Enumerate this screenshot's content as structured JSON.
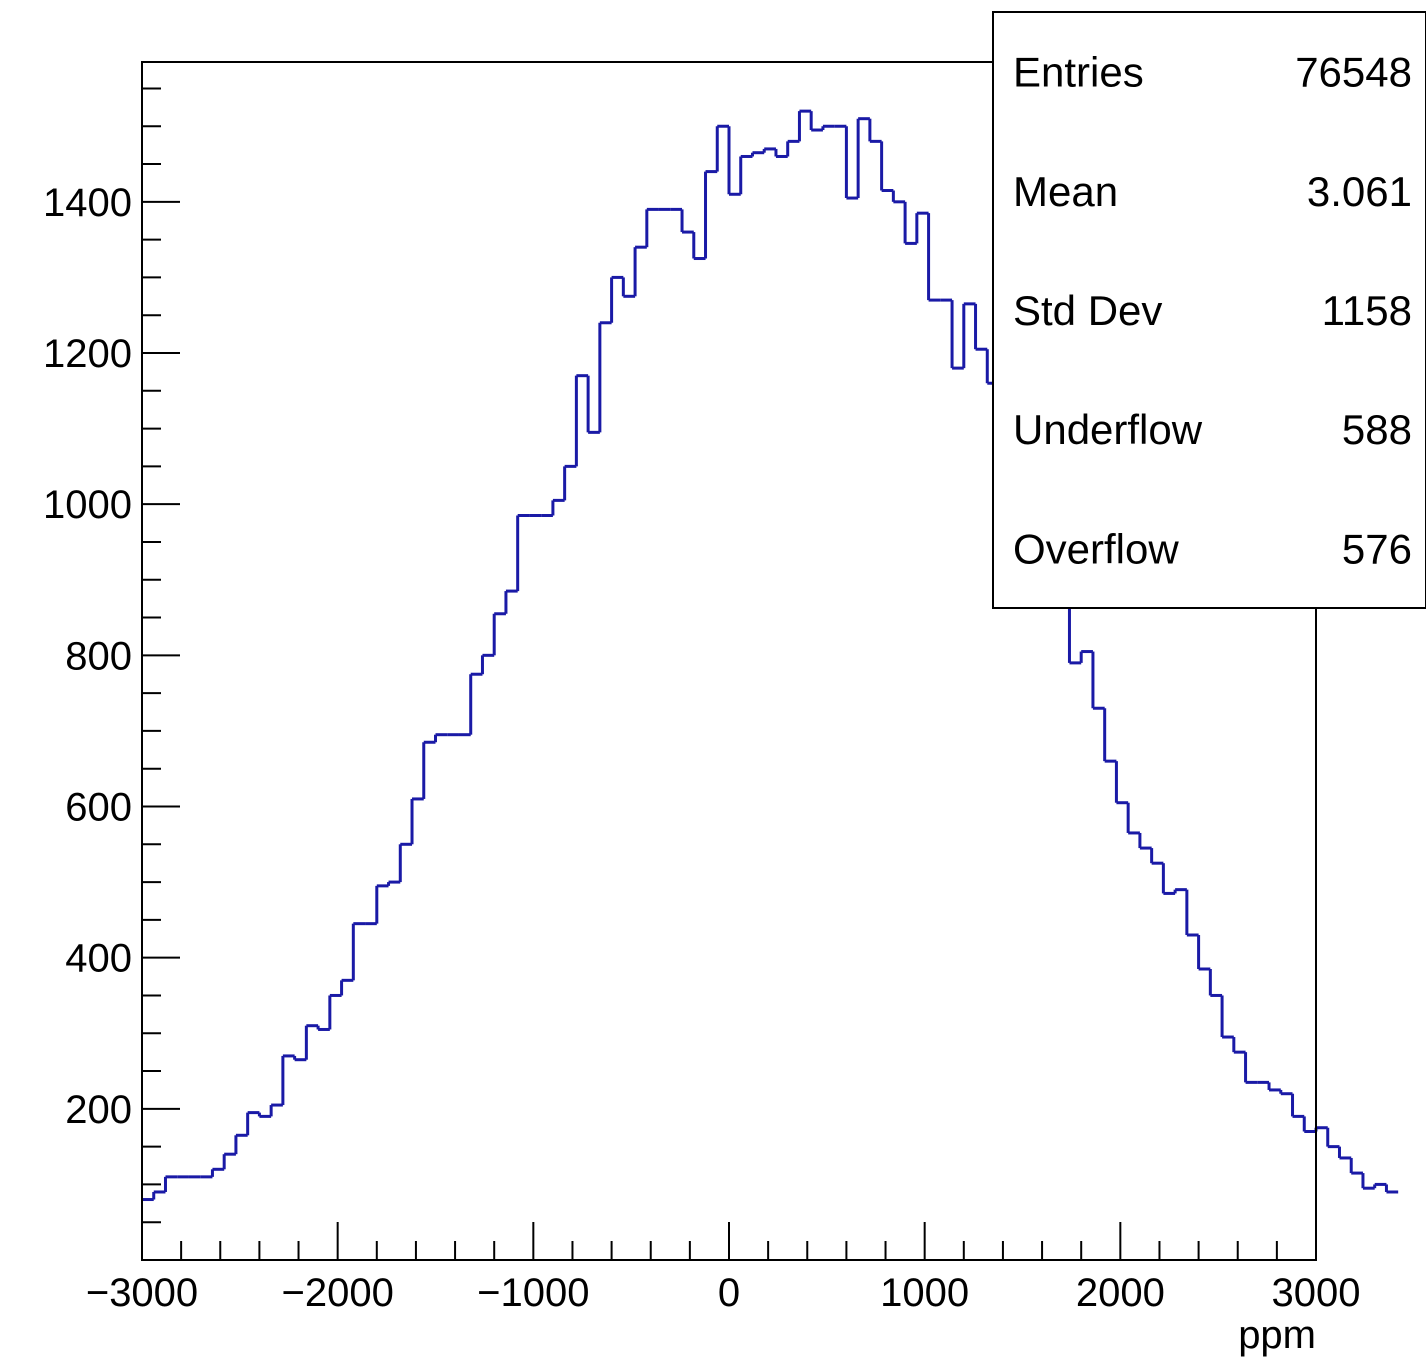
{
  "chart_data": {
    "type": "histogram",
    "title": "",
    "xlabel": "ppm",
    "ylabel": "",
    "xlim": [
      -3000,
      3000
    ],
    "ylim": [
      0,
      1585
    ],
    "grid": false,
    "line_color": "#1a1aa6",
    "x_major_ticks": [
      -3000,
      -2000,
      -1000,
      0,
      1000,
      2000,
      3000
    ],
    "x_tick_labels": [
      "−3000",
      "−2000",
      "−1000",
      "0",
      "1000",
      "2000",
      "3000"
    ],
    "y_major_ticks": [
      200,
      400,
      600,
      800,
      1000,
      1200,
      1400
    ],
    "y_tick_labels": [
      "200",
      "400",
      "600",
      "800",
      "1000",
      "1200",
      "1400"
    ],
    "bin_edges_start": -3000,
    "bin_width": 60,
    "counts": [
      80,
      90,
      110,
      110,
      110,
      110,
      120,
      140,
      165,
      195,
      190,
      205,
      270,
      265,
      310,
      305,
      350,
      370,
      445,
      445,
      495,
      500,
      550,
      610,
      685,
      695,
      695,
      695,
      775,
      800,
      855,
      885,
      985,
      985,
      985,
      1005,
      1050,
      1170,
      1095,
      1240,
      1300,
      1275,
      1340,
      1390,
      1390,
      1390,
      1360,
      1325,
      1440,
      1500,
      1410,
      1460,
      1465,
      1470,
      1460,
      1480,
      1520,
      1495,
      1500,
      1500,
      1405,
      1510,
      1480,
      1415,
      1400,
      1345,
      1385,
      1270,
      1270,
      1180,
      1265,
      1205,
      1160,
      1105,
      960,
      1000,
      945,
      895,
      865,
      790,
      805,
      730,
      660,
      605,
      565,
      545,
      525,
      485,
      490,
      430,
      385,
      350,
      295,
      275,
      235,
      235,
      225,
      220,
      190,
      170,
      175,
      150,
      135,
      115,
      95,
      100,
      90
    ],
    "legend_position": "top-right",
    "stats": {
      "rows": [
        {
          "label": "Entries",
          "value": "76548"
        },
        {
          "label": "Mean",
          "value": "3.061"
        },
        {
          "label": "Std Dev",
          "value": "1158"
        },
        {
          "label": "Underflow",
          "value": "588"
        },
        {
          "label": "Overflow",
          "value": "576"
        }
      ]
    }
  }
}
